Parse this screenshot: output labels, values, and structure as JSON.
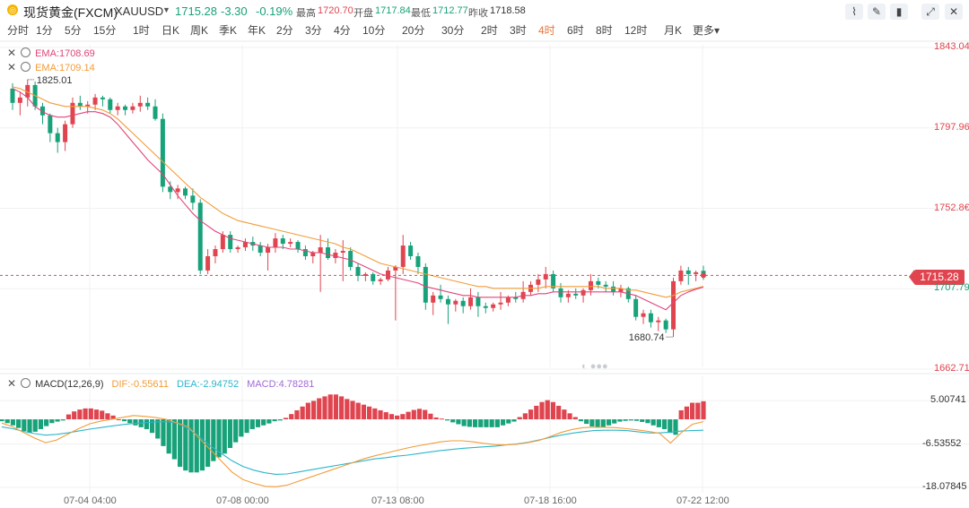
{
  "header": {
    "symbol_name": "现货黄金(FXCM)",
    "symbol_code": "XAUUSD",
    "last_price": "1715.28",
    "change": "-3.30",
    "change_pct": "-0.19%",
    "high_label": "最高",
    "high_value": "1720.70",
    "open_label": "开盘",
    "open_value": "1717.84",
    "low_label": "最低",
    "low_value": "1712.77",
    "prev_close_label": "昨收",
    "prev_close_value": "1718.58",
    "colors": {
      "up": "#e0454f",
      "down": "#17a27a",
      "ema1": "#e0457a",
      "ema2": "#f29c38",
      "dif": "#f29c38",
      "dea": "#2bb6cc",
      "macd": "#a16ad8"
    }
  },
  "periods": [
    "分时",
    "1分",
    "5分",
    "15分",
    "1时",
    "日K",
    "周K",
    "季K",
    "年K",
    "2分",
    "3分",
    "4分",
    "10分",
    "20分",
    "30分",
    "2时",
    "3时",
    "4时",
    "6时",
    "8时",
    "12时",
    "月K",
    "更多"
  ],
  "active_period": "4时",
  "toolbar_icons": [
    "line-style-icon",
    "draw-icon",
    "candle-settings-icon",
    "expand-icon",
    "close-icon"
  ],
  "indicators": {
    "ema1": "EMA:1708.69",
    "ema2": "EMA:1709.14",
    "macd_name": "MACD(12,26,9)",
    "dif": "DIF:-0.55611",
    "dea": "DEA:-2.94752",
    "macd": "MACD:4.78281"
  },
  "price_tag": "1715.28",
  "chart_data": [
    {
      "type": "candlestick",
      "title": "现货黄金(FXCM) XAUUSD 4时",
      "y_ticks": [
        "1843.04",
        "1797.96",
        "1752.8€",
        "1707.79",
        "1662.71"
      ],
      "ylim": [
        1662.71,
        1843.04
      ],
      "x_ticks": [
        "07-04 04:00",
        "07-08 00:00",
        "07-13 08:00",
        "07-18 16:00",
        "07-22 12:00"
      ],
      "annotations": [
        "1825.01",
        "1680.74"
      ],
      "current_price": 1715.28,
      "candles": [
        [
          1820,
          1823,
          1808,
          1812
        ],
        [
          1812,
          1818,
          1805,
          1815
        ],
        [
          1815,
          1825,
          1810,
          1822
        ],
        [
          1822,
          1824,
          1808,
          1810
        ],
        [
          1810,
          1812,
          1800,
          1805
        ],
        [
          1805,
          1806,
          1790,
          1795
        ],
        [
          1795,
          1798,
          1784,
          1790
        ],
        [
          1790,
          1802,
          1785,
          1800
        ],
        [
          1800,
          1815,
          1798,
          1812
        ],
        [
          1812,
          1816,
          1808,
          1810
        ],
        [
          1810,
          1813,
          1806,
          1811
        ],
        [
          1811,
          1817,
          1808,
          1815
        ],
        [
          1815,
          1816,
          1810,
          1814
        ],
        [
          1814,
          1815,
          1806,
          1808
        ],
        [
          1808,
          1812,
          1805,
          1810
        ],
        [
          1810,
          1811,
          1805,
          1808
        ],
        [
          1808,
          1812,
          1806,
          1810
        ],
        [
          1810,
          1816,
          1807,
          1812
        ],
        [
          1812,
          1815,
          1808,
          1810
        ],
        [
          1810,
          1814,
          1802,
          1803
        ],
        [
          1803,
          1806,
          1762,
          1765
        ],
        [
          1765,
          1768,
          1758,
          1762
        ],
        [
          1762,
          1766,
          1758,
          1764
        ],
        [
          1764,
          1765,
          1758,
          1760
        ],
        [
          1760,
          1764,
          1752,
          1756
        ],
        [
          1756,
          1758,
          1716,
          1718
        ],
        [
          1718,
          1730,
          1716,
          1726
        ],
        [
          1726,
          1732,
          1722,
          1730
        ],
        [
          1730,
          1740,
          1728,
          1738
        ],
        [
          1738,
          1740,
          1728,
          1730
        ],
        [
          1730,
          1732,
          1728,
          1731
        ],
        [
          1731,
          1736,
          1729,
          1734
        ],
        [
          1734,
          1737,
          1729,
          1732
        ],
        [
          1732,
          1734,
          1726,
          1728
        ],
        [
          1728,
          1733,
          1718,
          1731
        ],
        [
          1731,
          1739,
          1728,
          1736
        ],
        [
          1736,
          1738,
          1730,
          1733
        ],
        [
          1733,
          1736,
          1731,
          1734
        ],
        [
          1734,
          1735,
          1728,
          1730
        ],
        [
          1730,
          1732,
          1724,
          1726
        ],
        [
          1726,
          1729,
          1722,
          1728
        ],
        [
          1728,
          1738,
          1706,
          1731
        ],
        [
          1731,
          1736,
          1724,
          1725
        ],
        [
          1725,
          1730,
          1722,
          1728
        ],
        [
          1728,
          1735,
          1712,
          1729
        ],
        [
          1729,
          1731,
          1718,
          1720
        ],
        [
          1720,
          1722,
          1712,
          1715
        ],
        [
          1715,
          1717,
          1712,
          1716
        ],
        [
          1716,
          1717,
          1710,
          1712
        ],
        [
          1712,
          1714,
          1710,
          1713
        ],
        [
          1713,
          1720,
          1712,
          1718
        ],
        [
          1718,
          1721,
          1690,
          1720
        ],
        [
          1720,
          1738,
          1716,
          1732
        ],
        [
          1732,
          1734,
          1724,
          1726
        ],
        [
          1726,
          1728,
          1716,
          1720
        ],
        [
          1720,
          1722,
          1696,
          1700
        ],
        [
          1700,
          1706,
          1693,
          1704
        ],
        [
          1704,
          1710,
          1700,
          1702
        ],
        [
          1702,
          1704,
          1688,
          1699
        ],
        [
          1699,
          1702,
          1695,
          1701
        ],
        [
          1701,
          1703,
          1694,
          1698
        ],
        [
          1698,
          1708,
          1696,
          1703
        ],
        [
          1703,
          1706,
          1692,
          1698
        ],
        [
          1698,
          1700,
          1694,
          1697
        ],
        [
          1697,
          1700,
          1695,
          1699
        ],
        [
          1699,
          1706,
          1696,
          1700
        ],
        [
          1700,
          1704,
          1698,
          1703
        ],
        [
          1703,
          1706,
          1700,
          1702
        ],
        [
          1702,
          1712,
          1700,
          1706
        ],
        [
          1706,
          1712,
          1704,
          1710
        ],
        [
          1710,
          1716,
          1706,
          1713
        ],
        [
          1713,
          1720,
          1708,
          1716
        ],
        [
          1716,
          1718,
          1706,
          1708
        ],
        [
          1708,
          1711,
          1700,
          1703
        ],
        [
          1703,
          1707,
          1700,
          1705
        ],
        [
          1705,
          1708,
          1702,
          1704
        ],
        [
          1704,
          1708,
          1700,
          1707
        ],
        [
          1707,
          1716,
          1704,
          1712
        ],
        [
          1712,
          1714,
          1708,
          1710
        ],
        [
          1710,
          1712,
          1706,
          1709
        ],
        [
          1709,
          1712,
          1704,
          1706
        ],
        [
          1706,
          1710,
          1703,
          1708
        ],
        [
          1708,
          1709,
          1700,
          1702
        ],
        [
          1702,
          1704,
          1690,
          1692
        ],
        [
          1692,
          1696,
          1688,
          1694
        ],
        [
          1694,
          1696,
          1686,
          1689
        ],
        [
          1689,
          1692,
          1684,
          1690
        ],
        [
          1690,
          1691,
          1683,
          1685
        ],
        [
          1685,
          1714,
          1680.74,
          1712
        ],
        [
          1712,
          1720.7,
          1710,
          1718
        ],
        [
          1718,
          1720,
          1710,
          1716
        ],
        [
          1716,
          1718,
          1712,
          1717
        ],
        [
          1717.84,
          1720.7,
          1712.77,
          1715.28
        ]
      ],
      "ema1": [
        1820,
        1818,
        1815,
        1810,
        1807,
        1805,
        1804,
        1804,
        1805,
        1806,
        1807,
        1807,
        1806,
        1804,
        1800,
        1795,
        1790,
        1785,
        1780,
        1776,
        1772,
        1766,
        1760,
        1755,
        1750,
        1746,
        1743,
        1740,
        1738,
        1736,
        1735,
        1734,
        1733,
        1732,
        1731,
        1731,
        1731,
        1730,
        1730,
        1729,
        1728,
        1728,
        1727,
        1726,
        1725,
        1724,
        1722,
        1720,
        1718,
        1716,
        1715,
        1714,
        1713,
        1712,
        1711,
        1709,
        1708,
        1707,
        1706,
        1705,
        1704,
        1704,
        1703,
        1703,
        1703,
        1703,
        1703,
        1703,
        1704,
        1704,
        1705,
        1705,
        1706,
        1706,
        1706,
        1706,
        1706,
        1706,
        1706,
        1706,
        1706,
        1706,
        1705,
        1704,
        1702,
        1700,
        1698,
        1696,
        1700,
        1704,
        1706,
        1707.5,
        1708.69
      ],
      "ema2": [
        1821,
        1820,
        1818,
        1816,
        1814,
        1812,
        1811,
        1810,
        1810,
        1810,
        1810,
        1809,
        1808,
        1806,
        1803,
        1799,
        1795,
        1791,
        1787,
        1783,
        1779,
        1775,
        1771,
        1767,
        1763,
        1759,
        1756,
        1753,
        1750,
        1748,
        1746,
        1745,
        1744,
        1743,
        1742,
        1741,
        1740,
        1739,
        1738,
        1737,
        1736,
        1735,
        1734,
        1733,
        1731,
        1730,
        1728,
        1726,
        1724,
        1722,
        1721,
        1720,
        1719,
        1718,
        1717,
        1716,
        1715,
        1714,
        1713,
        1712,
        1711,
        1710,
        1709,
        1709,
        1708,
        1708,
        1708,
        1708,
        1708,
        1708,
        1708,
        1709,
        1709,
        1709,
        1709,
        1709,
        1709,
        1709,
        1709,
        1708,
        1708,
        1708,
        1707,
        1707,
        1706,
        1705,
        1704,
        1703,
        1704,
        1706,
        1707,
        1708,
        1709.14
      ]
    },
    {
      "type": "bar",
      "title": "MACD(12,26,9)",
      "y_ticks": [
        "5.00741",
        "-6.53552",
        "-18.07845"
      ],
      "ylim": [
        -18.07845,
        5.00741
      ],
      "histogram": [
        -0.5,
        -1,
        -1.6,
        -2.3,
        -3.1,
        -3.6,
        -3.3,
        -2.6,
        -1.8,
        -1,
        -0.6,
        -0.3,
        1.3,
        2.1,
        2.6,
        2.9,
        2.9,
        2.6,
        2.3,
        1.6,
        1,
        0,
        -0.5,
        -1,
        -1.6,
        -2.1,
        -2.6,
        -3.6,
        -5.1,
        -7.1,
        -9.1,
        -10.6,
        -12.6,
        -13.6,
        -14.1,
        -14.1,
        -13.6,
        -12.6,
        -11.1,
        -10.1,
        -9.1,
        -7.6,
        -6.1,
        -4.6,
        -3.6,
        -2.6,
        -2.1,
        -1.6,
        -1.1,
        -0.5,
        -0.3,
        0.4,
        1.4,
        2.4,
        3.4,
        4.4,
        4.9,
        5.6,
        6.1,
        6.6,
        6.6,
        6.1,
        5.4,
        4.9,
        4.4,
        3.9,
        3.4,
        2.9,
        2.4,
        1.9,
        1.4,
        1,
        1.4,
        2,
        2.5,
        2.8,
        2.5,
        1.5,
        0.5,
        0.2,
        -0.3,
        -0.8,
        -1.3,
        -1.8,
        -2,
        -2.1,
        -2.1,
        -2.1,
        -2.1,
        -2.1,
        -1.6,
        -1.1,
        -0.6,
        0.6,
        1.6,
        2.6,
        3.6,
        4.6,
        5.1,
        4.6,
        3.6,
        2.6,
        1.6,
        0.6,
        -0.5,
        -1.2,
        -1.9,
        -2.2,
        -2.1,
        -1.6,
        -1.1,
        -0.6,
        -0.4,
        -0.3,
        -0.4,
        -0.7,
        -1,
        -1.6,
        -2.1,
        -2.6,
        -3.6,
        -4.1,
        2.4,
        3.4,
        4.4,
        4.4,
        4.8
      ],
      "dif": [
        -1,
        -2,
        -3.5,
        -5,
        -6.2,
        -5.5,
        -4,
        -2.5,
        -1.2,
        -0.5,
        0,
        0.5,
        1,
        0.8,
        0.5,
        0,
        -1,
        -2,
        -5,
        -8,
        -11,
        -14,
        -16,
        -17,
        -17.8,
        -17.9,
        -17.5,
        -16.5,
        -15.5,
        -14.5,
        -13.5,
        -12.5,
        -11.5,
        -10.5,
        -9.7,
        -9,
        -8.3,
        -7.6,
        -7,
        -6.5,
        -6,
        -5.7,
        -5.7,
        -6,
        -6.4,
        -6.7,
        -6.8,
        -6.6,
        -6.2,
        -5.6,
        -4.6,
        -3.5,
        -2.7,
        -2.2,
        -2.1,
        -2.1,
        -2.2,
        -2.5,
        -2.8,
        -3.2,
        -3.7,
        -6.3,
        -3.5,
        -1.3,
        -0.6
      ],
      "dea": [
        -2,
        -2.5,
        -3.2,
        -3.8,
        -4.2,
        -4,
        -3.6,
        -3.1,
        -2.6,
        -2.2,
        -1.8,
        -1.4,
        -1.1,
        -0.9,
        -0.7,
        -0.6,
        -1,
        -2.5,
        -4.5,
        -7,
        -9,
        -11,
        -12.5,
        -13.5,
        -14.2,
        -14.6,
        -14.5,
        -14,
        -13.5,
        -13,
        -12.5,
        -12,
        -11.5,
        -11,
        -10.5,
        -10.2,
        -9.8,
        -9.5,
        -9.1,
        -8.7,
        -8.3,
        -8,
        -7.7,
        -7.5,
        -7.3,
        -7.1,
        -6.8,
        -6.5,
        -6.1,
        -5.5,
        -4.8,
        -4.2,
        -3.7,
        -3.3,
        -3,
        -2.9,
        -2.9,
        -3,
        -3.3,
        -3.6,
        -3.6,
        -3.4,
        -3.1,
        -3,
        -2.9
      ]
    }
  ]
}
